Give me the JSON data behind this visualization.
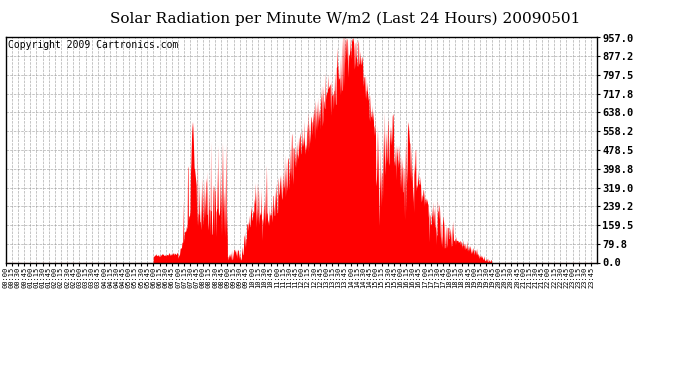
{
  "title": "Solar Radiation per Minute W/m2 (Last 24 Hours) 20090501",
  "copyright": "Copyright 2009 Cartronics.com",
  "yticks": [
    0.0,
    79.8,
    159.5,
    239.2,
    319.0,
    398.8,
    478.5,
    558.2,
    638.0,
    717.8,
    797.5,
    877.2,
    957.0
  ],
  "ymin": 0.0,
  "ymax": 957.0,
  "bar_color": "#FF0000",
  "bg_color": "#FFFFFF",
  "grid_color": "#999999",
  "dashed_line_color": "#FF0000",
  "title_fontsize": 11,
  "copyright_fontsize": 7
}
